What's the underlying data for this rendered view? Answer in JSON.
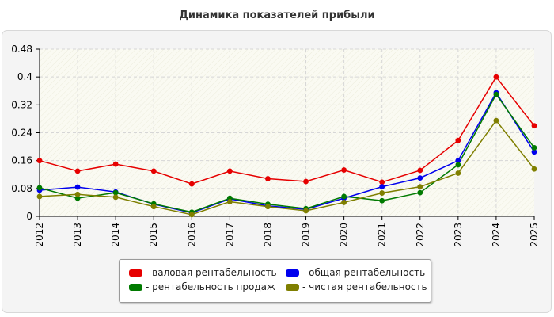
{
  "chart_data": {
    "type": "line",
    "title": "Динамика показателей прибыли",
    "xlabel": "",
    "ylabel": "",
    "x": [
      "2012",
      "2013",
      "2014",
      "2015",
      "2016",
      "2017",
      "2018",
      "2019",
      "2020",
      "2021",
      "2022",
      "2023",
      "2024",
      "2025"
    ],
    "ylim": [
      0,
      0.48
    ],
    "yticks": [
      "0",
      "0.08",
      "0.16",
      "0.24",
      "0.32",
      "0.4",
      "0.48"
    ],
    "grid": true,
    "legend_position": "bottom",
    "series": [
      {
        "name": "- валовая рентабельность",
        "color": "#e60000",
        "values": [
          0.16,
          0.13,
          0.15,
          0.13,
          0.093,
          0.13,
          0.108,
          0.1,
          0.133,
          0.098,
          0.132,
          0.218,
          0.4,
          0.26
        ]
      },
      {
        "name": "- общая рентабельность",
        "color": "#0000ee",
        "values": [
          0.075,
          0.084,
          0.07,
          0.035,
          0.01,
          0.05,
          0.03,
          0.02,
          0.052,
          0.085,
          0.11,
          0.16,
          0.355,
          0.185
        ]
      },
      {
        "name": "- рентабельность продаж",
        "color": "#007a00",
        "values": [
          0.082,
          0.052,
          0.068,
          0.036,
          0.012,
          0.052,
          0.035,
          0.022,
          0.057,
          0.045,
          0.068,
          0.148,
          0.35,
          0.197
        ]
      },
      {
        "name": "- чистая рентабельность",
        "color": "#7f7f00",
        "values": [
          0.057,
          0.063,
          0.055,
          0.028,
          0.005,
          0.042,
          0.028,
          0.016,
          0.04,
          0.067,
          0.085,
          0.124,
          0.275,
          0.136
        ]
      }
    ]
  }
}
